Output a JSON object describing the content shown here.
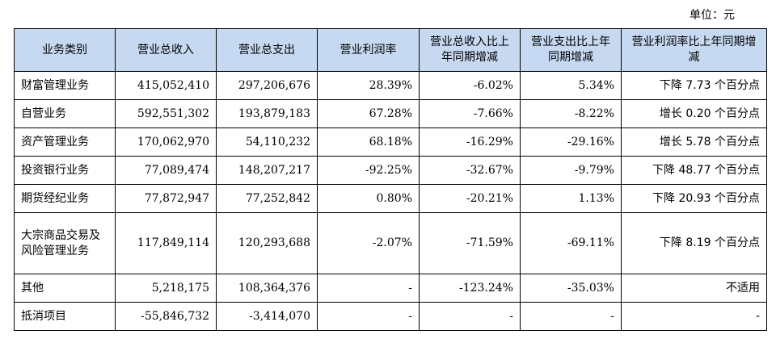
{
  "unit_label": "单位：元",
  "table": {
    "headers": [
      "业务类别",
      "营业总收入",
      "营业总支出",
      "营业利润率",
      "营业总收入比上年同期增减",
      "营业支出比上年同期增减",
      "营业利润率比上年同期增减"
    ],
    "rows": [
      [
        "财富管理业务",
        "415,052,410",
        "297,206,676",
        "28.39%",
        "-6.02%",
        "5.34%",
        "下降 7.73 个百分点"
      ],
      [
        "自营业务",
        "592,551,302",
        "193,879,183",
        "67.28%",
        "-7.66%",
        "-8.22%",
        "增长 0.20 个百分点"
      ],
      [
        "资产管理业务",
        "170,062,970",
        "54,110,232",
        "68.18%",
        "-16.29%",
        "-29.16%",
        "增长 5.78 个百分点"
      ],
      [
        "投资银行业务",
        "77,089,474",
        "148,207,217",
        "-92.25%",
        "-32.67%",
        "-9.79%",
        "下降 48.77 个百分点"
      ],
      [
        "期货经纪业务",
        "77,872,947",
        "77,252,842",
        "0.80%",
        "-20.21%",
        "1.13%",
        "下降 20.93 个百分点"
      ],
      [
        "大宗商品交易及风险管理业务",
        "117,849,114",
        "120,293,688",
        "-2.07%",
        "-71.59%",
        "-69.11%",
        "下降 8.19 个百分点"
      ],
      [
        "其他",
        "5,218,175",
        "108,364,376",
        "-",
        "-123.24%",
        "-35.03%",
        "不适用"
      ],
      [
        "抵消项目",
        "-55,846,732",
        "-3,414,070",
        "-",
        "-",
        "-",
        "-"
      ]
    ]
  }
}
